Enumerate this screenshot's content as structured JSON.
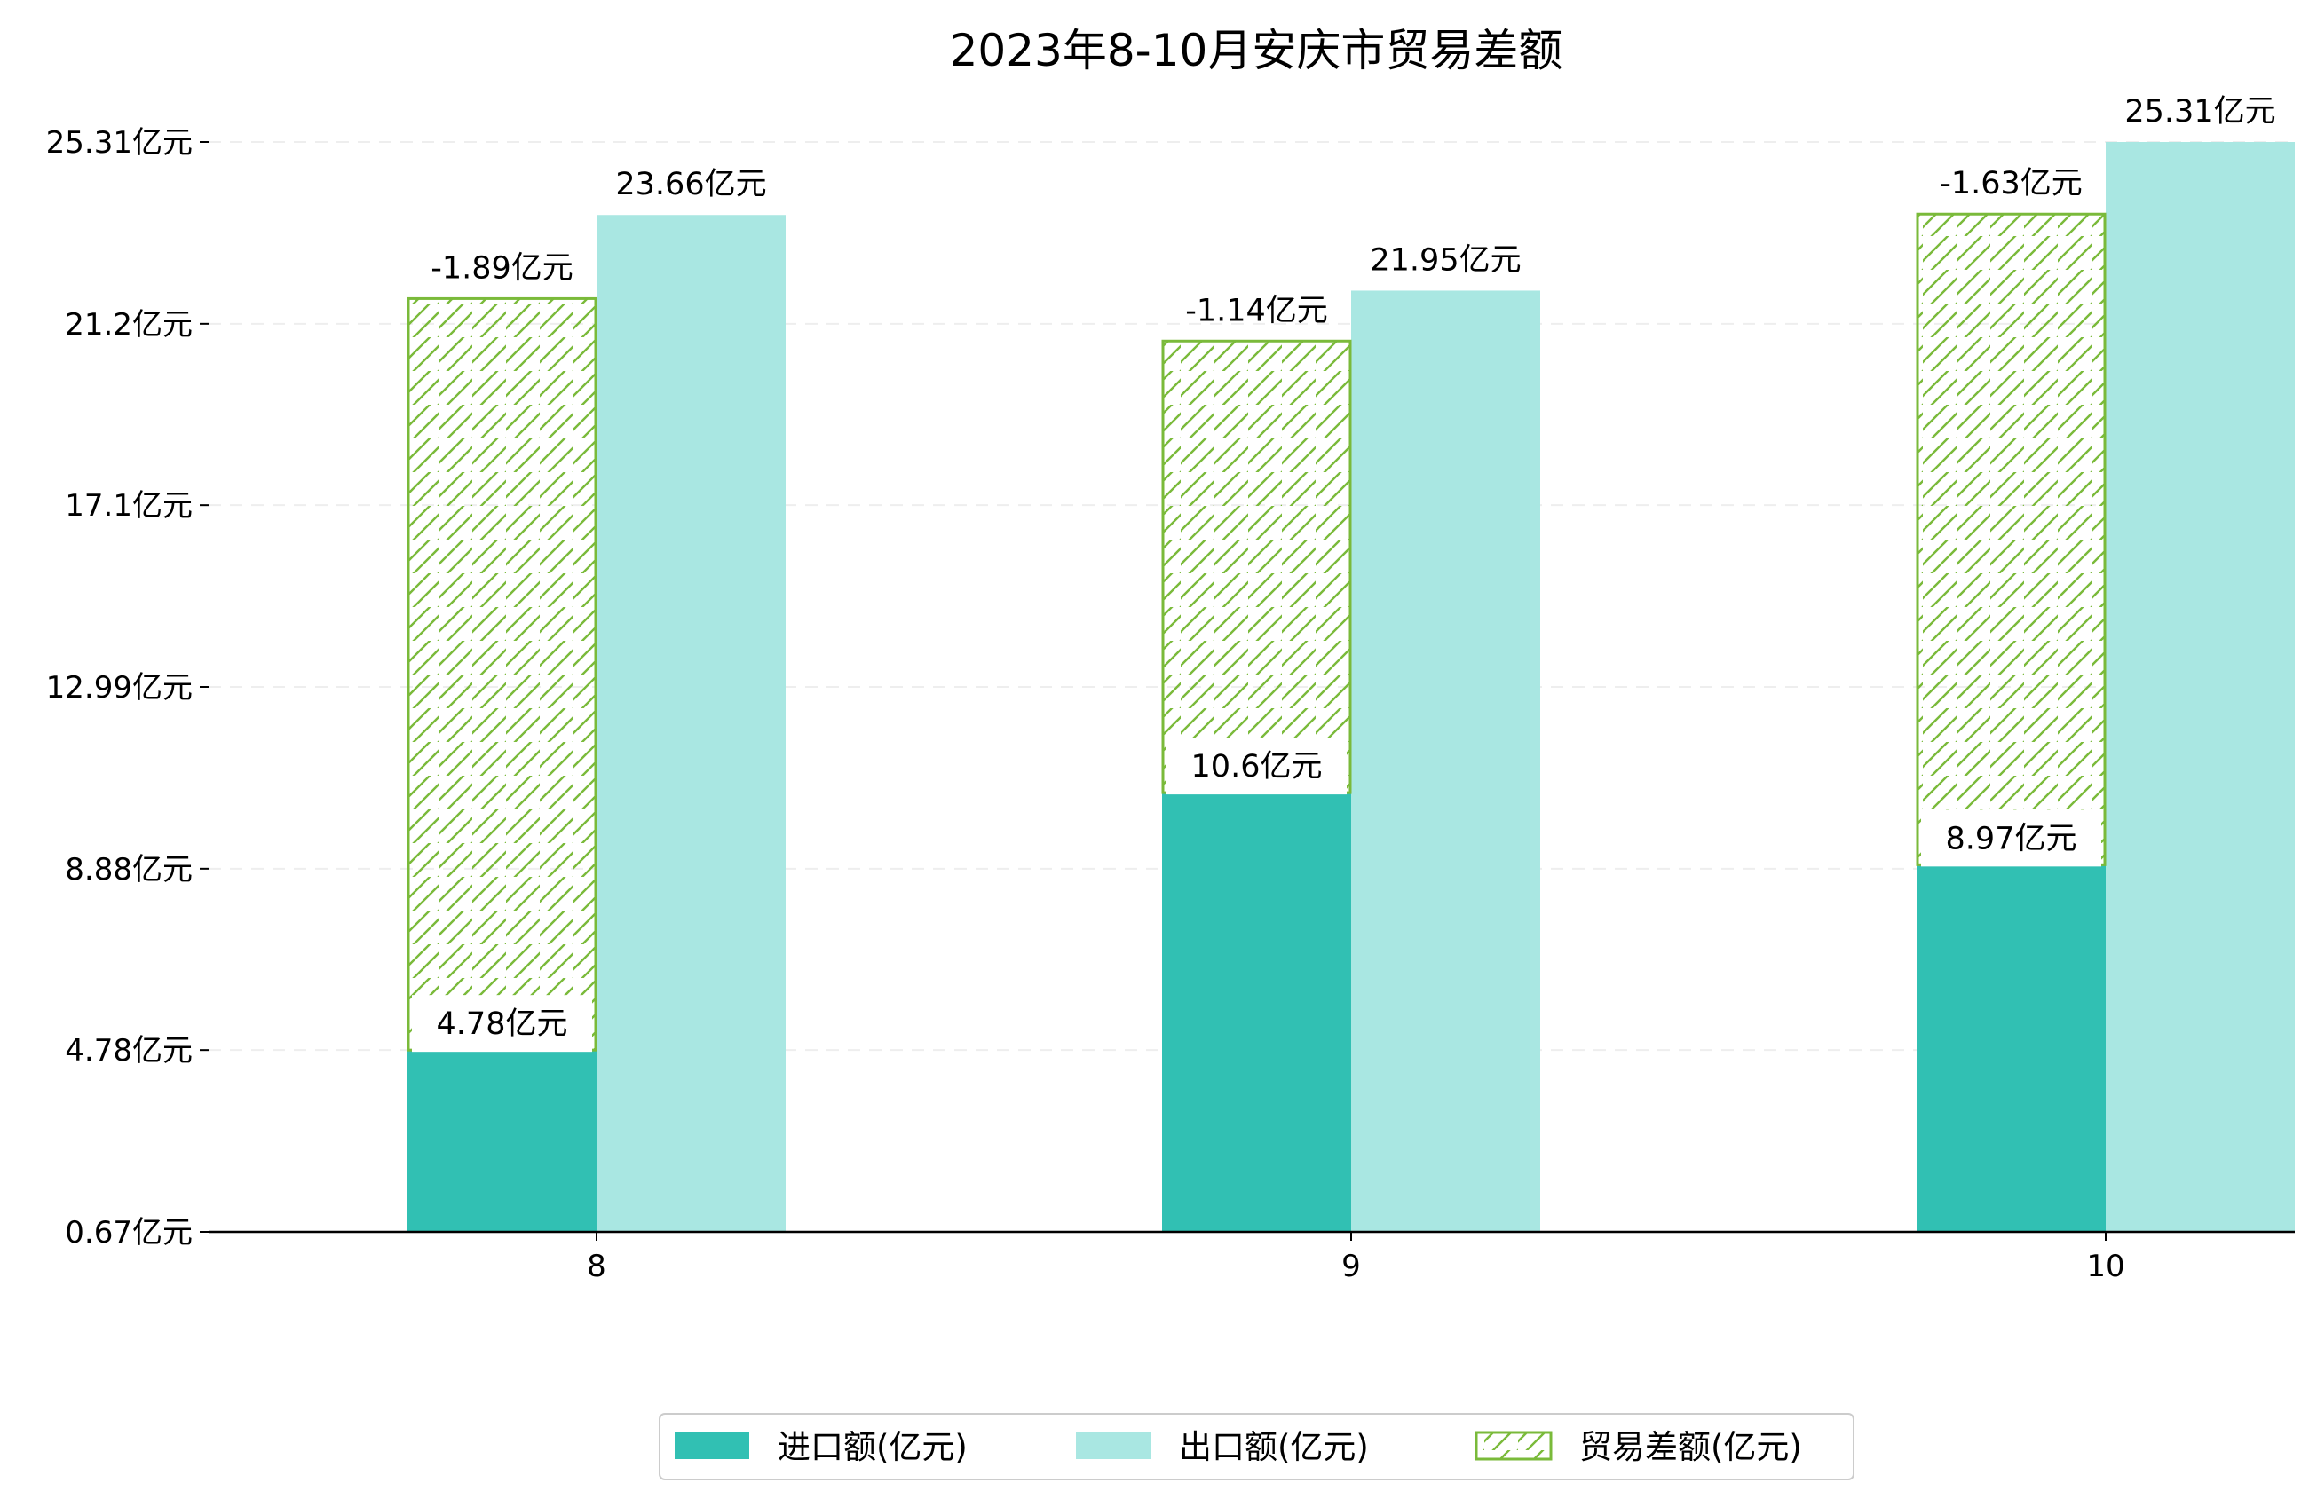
{
  "chart_data": {
    "type": "bar",
    "title": "2023年8-10月安庆市贸易差额",
    "xlabel": "",
    "ylabel": "",
    "categories": [
      "8",
      "9",
      "10"
    ],
    "ylim": [
      0.67,
      26.0
    ],
    "yticks": [
      "0.67亿元",
      "4.78亿元",
      "8.88亿元",
      "12.99亿元",
      "17.1亿元",
      "21.2亿元",
      "25.31亿元"
    ],
    "grid": true,
    "legend_position": "bottom",
    "series": [
      {
        "name": "进口额(亿元)",
        "values": [
          4.78,
          10.6,
          8.97
        ],
        "labels": [
          "4.78亿元",
          "10.6亿元",
          "8.97亿元"
        ],
        "color": "#31c0b3"
      },
      {
        "name": "出口额(亿元)",
        "values": [
          23.66,
          21.95,
          25.31
        ],
        "labels": [
          "23.66亿元",
          "21.95亿元",
          "25.31亿元"
        ],
        "color": "#a9e7e2"
      },
      {
        "name": "贸易差额(亿元)",
        "values": [
          -1.89,
          -1.14,
          -1.63
        ],
        "labels": [
          "-1.89亿元",
          "-1.14亿元",
          "-1.63亿元"
        ],
        "color": "#7aba3a",
        "hatch": true
      }
    ]
  }
}
